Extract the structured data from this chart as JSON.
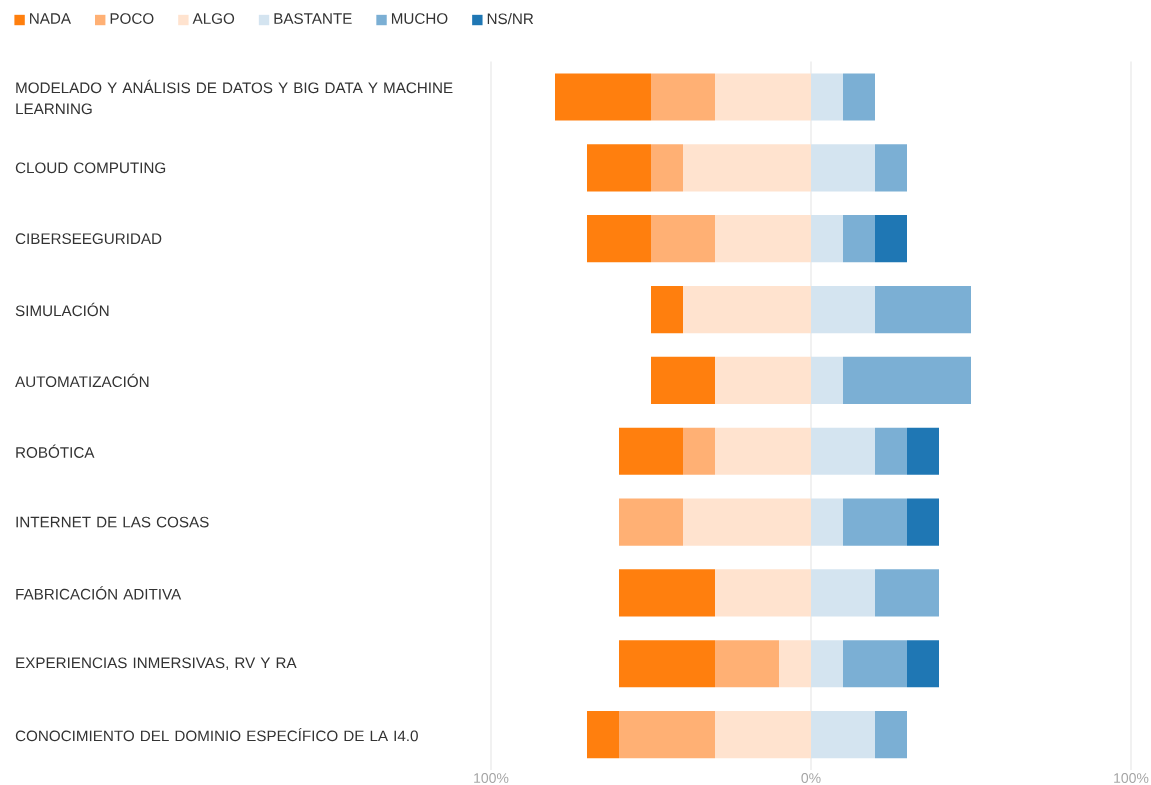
{
  "chart_data": {
    "type": "bar",
    "orientation": "horizontal",
    "categories": [
      "MODELADO Y ANÁLISIS DE DATOS Y BIG DATA Y MACHINE LEARNING",
      "CLOUD COMPUTING",
      "CIBERSEEGURIDAD",
      "SIMULACIÓN",
      "AUTOMATIZACIÓN",
      "ROBÓTICA",
      "INTERNET DE LAS COSAS",
      "FABRICACIÓN ADITIVA",
      "EXPERIENCIAS INMERSIVAS, RV Y RA",
      "CONOCIMIENTO DEL DOMINIO ESPECÍFICO DE LA I4.0"
    ],
    "series": [
      {
        "name": "NADA",
        "color": "#ff7f0e",
        "values": [
          30,
          20,
          20,
          10,
          20,
          20,
          null,
          30,
          30,
          10
        ],
        "base": [
          -80,
          -70,
          -70,
          -50,
          -50,
          -60,
          null,
          -60,
          -60,
          -70
        ]
      },
      {
        "name": "POCO",
        "color": "#ffb074",
        "values": [
          20,
          10,
          20,
          null,
          null,
          10,
          20,
          null,
          20,
          30
        ],
        "base": [
          -50,
          -50,
          -50,
          null,
          null,
          -40,
          -60,
          null,
          -30,
          -60
        ]
      },
      {
        "name": "ALGO",
        "color": "#ffe3cf",
        "values": [
          30,
          40,
          30,
          40,
          30,
          30,
          40,
          30,
          10,
          30
        ],
        "base": [
          -30,
          -40,
          -30,
          -40,
          -30,
          -30,
          -40,
          -30,
          -10,
          -30
        ]
      },
      {
        "name": "BASTANTE",
        "color": "#d4e4f0",
        "values": [
          10,
          20,
          10,
          20,
          10,
          20,
          10,
          20,
          10,
          20
        ],
        "base": [
          0,
          0,
          0,
          0,
          0,
          0,
          0,
          0,
          0,
          0
        ]
      },
      {
        "name": "MUCHO",
        "color": "#7bafd4",
        "values": [
          10,
          10,
          10,
          30,
          40,
          10,
          20,
          20,
          20,
          10
        ],
        "base": [
          10,
          20,
          10,
          20,
          10,
          20,
          10,
          20,
          10,
          20
        ]
      },
      {
        "name": "NS/NR",
        "color": "#1f77b4",
        "values": [
          null,
          null,
          10,
          null,
          null,
          10,
          10,
          null,
          10,
          null
        ],
        "base": [
          null,
          null,
          20,
          null,
          null,
          30,
          30,
          null,
          30,
          null
        ]
      }
    ],
    "xlim": [
      -100,
      100
    ],
    "xticks": [
      {
        "value": -100,
        "label": "100%"
      },
      {
        "value": 0,
        "label": "0%"
      },
      {
        "value": 100,
        "label": "100%"
      }
    ],
    "grid": "x",
    "legend": "top left"
  }
}
